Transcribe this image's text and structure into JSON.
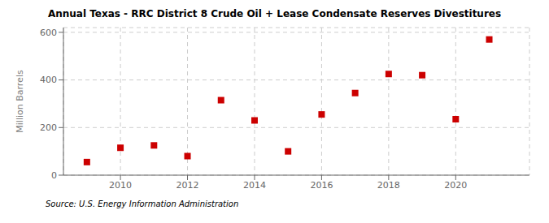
{
  "chart_data": {
    "type": "scatter",
    "title": "Annual Texas - RRC District 8 Crude Oil + Lease Condensate Reserves Divestitures",
    "ylabel": "Million Barrels",
    "annotation": "Source: U.S. Energy Information Administration",
    "x": [
      2009,
      2010,
      2011,
      2012,
      2013,
      2014,
      2015,
      2016,
      2017,
      2018,
      2019,
      2020,
      2021
    ],
    "values": [
      55,
      115,
      125,
      80,
      315,
      230,
      100,
      255,
      345,
      425,
      420,
      235,
      570
    ],
    "color": "#cc0000",
    "marker": "square",
    "xlim": [
      2008.3,
      2022.2
    ],
    "xticks": [
      2010,
      2012,
      2014,
      2016,
      2018,
      2020
    ],
    "ylim": [
      0,
      620
    ],
    "yticks": [
      0,
      200,
      400,
      600
    ],
    "grid": true
  }
}
